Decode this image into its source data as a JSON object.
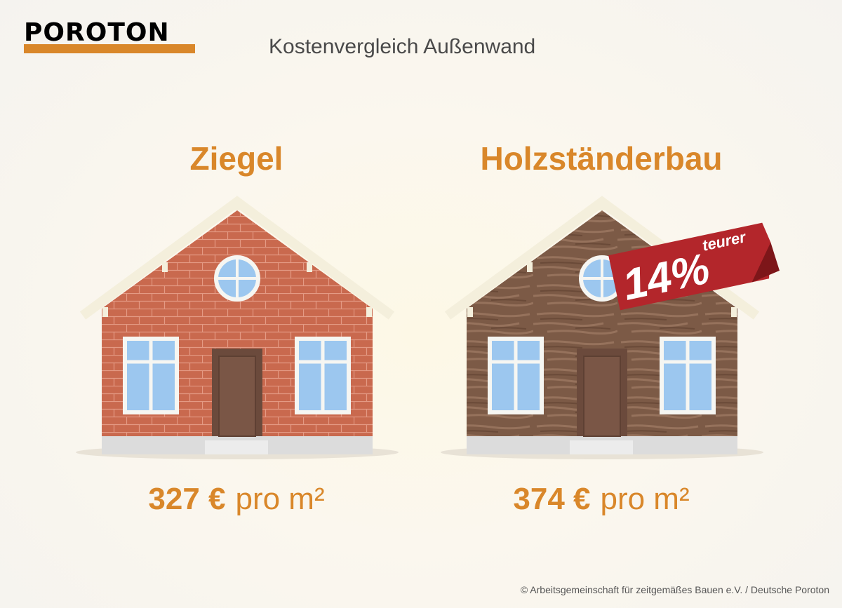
{
  "header": {
    "logo": "POROTON",
    "title": "Kostenvergleich Außenwand"
  },
  "panels": [
    {
      "title": "Ziegel",
      "price": "327 €",
      "unit": "pro m²"
    },
    {
      "title": "Holzständerbau",
      "price": "374 €",
      "unit": "pro m²"
    }
  ],
  "badge": {
    "value": "14%",
    "label": "teurer"
  },
  "footer": "© Arbeitsgemeinschaft für zeitgemäßes Bauen e.V. / Deutsche Poroton"
}
